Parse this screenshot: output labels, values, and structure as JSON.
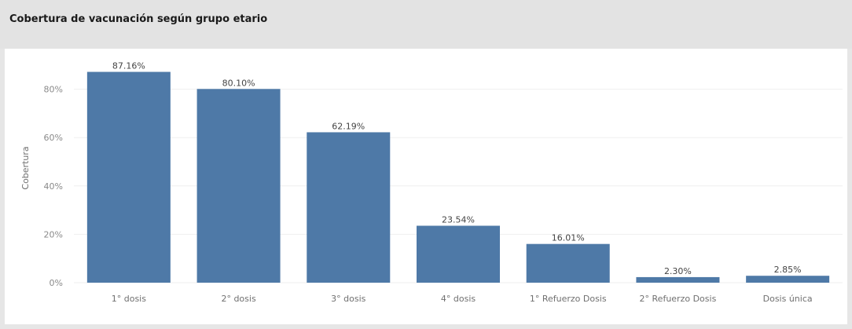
{
  "panel": {
    "title": "Cobertura de vacunación según grupo etario"
  },
  "colors": {
    "bar": "#4e79a7",
    "grid": "#efefef",
    "header_bg": "#e3e3e3",
    "plot_bg": "#ffffff"
  },
  "chart_data": {
    "type": "bar",
    "title": "Cobertura de vacunación según grupo etario",
    "xlabel": "",
    "ylabel": "Cobertura",
    "ylim": [
      0,
      0.92
    ],
    "yticks": [
      0,
      0.2,
      0.4,
      0.6,
      0.8
    ],
    "ytick_labels": [
      "0%",
      "20%",
      "40%",
      "60%",
      "80%"
    ],
    "grid": true,
    "categories": [
      "1° dosis",
      "2° dosis",
      "3° dosis",
      "4° dosis",
      "1° Refuerzo Dosis",
      "2° Refuerzo Dosis",
      "Dosis única"
    ],
    "values": [
      0.8716,
      0.801,
      0.6219,
      0.2354,
      0.1601,
      0.023,
      0.0285
    ],
    "value_labels": [
      "87.16%",
      "80.10%",
      "62.19%",
      "23.54%",
      "16.01%",
      "2.30%",
      "2.85%"
    ]
  }
}
